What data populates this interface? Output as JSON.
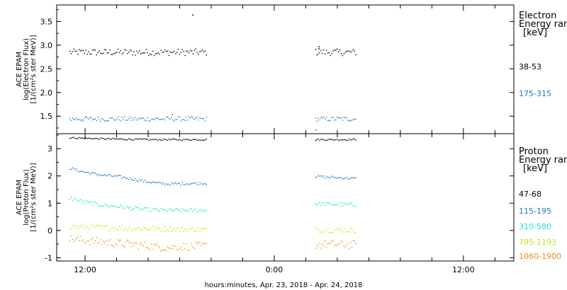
{
  "chart_data": [
    {
      "type": "scatter",
      "panel": "top",
      "ylabel": [
        "ACE EPAM",
        "log(Electron Flux)",
        "[1/(cm²s ster MeV)]"
      ],
      "ylim": [
        1.13,
        3.85
      ],
      "yticks": [
        1.5,
        2.0,
        2.5,
        3.0,
        3.5
      ],
      "ytick_labels": [
        "1.5",
        "2.0",
        "2.5",
        "3.0",
        "3.5"
      ],
      "legend": {
        "title": [
          "Electron",
          "Energy ranges",
          "[keV]"
        ],
        "entries": [
          {
            "label": "38-53",
            "color": "#000000"
          },
          {
            "label": "175-315",
            "color": "#1e78c8"
          }
        ]
      },
      "series": [
        {
          "name": "38-53",
          "color": "#000000",
          "base": 2.86,
          "noise": 0.07,
          "trend": [],
          "segments": [
            [
              -1.0,
              7.7
            ],
            [
              14.6,
              17.2
            ]
          ],
          "step": 0.085,
          "outliers": [
            [
              6.8,
              3.65
            ],
            [
              14.8,
              2.98
            ],
            [
              14.8,
              2.94
            ]
          ]
        },
        {
          "name": "175-315",
          "color": "#1e78c8",
          "base": 1.45,
          "noise": 0.05,
          "trend": [],
          "segments": [
            [
              -1.0,
              7.7
            ],
            [
              14.6,
              17.2
            ]
          ],
          "step": 0.085,
          "outliers": [
            [
              0.0,
              1.5
            ],
            [
              5.5,
              1.55
            ],
            [
              14.6,
              1.22
            ]
          ]
        }
      ]
    },
    {
      "type": "scatter",
      "panel": "bottom",
      "ylabel": [
        "ACE EPAM",
        "log(Proton Flux)",
        "[1/(cm²s ster MeV)]"
      ],
      "ylim": [
        -1.12,
        3.55
      ],
      "yticks": [
        -1,
        0,
        1,
        2,
        3
      ],
      "ytick_labels": [
        "-1",
        "0",
        "1",
        "2",
        "3"
      ],
      "legend": {
        "title": [
          "Proton",
          "Energy ranges",
          "[keV]"
        ],
        "entries": [
          {
            "label": "47-68",
            "color": "#000000"
          },
          {
            "label": "115-195",
            "color": "#1e78c8"
          },
          {
            "label": "310-580",
            "color": "#1ee6c8"
          },
          {
            "label": "795-1193",
            "color": "#c8e61e"
          },
          {
            "label": "1060-1900",
            "color": "#f08c14"
          }
        ]
      },
      "series": [
        {
          "name": "47-68",
          "color": "#000000",
          "base": 3.35,
          "noise": 0.03,
          "trend": [
            [
              -1,
              3.42
            ],
            [
              1,
              3.38
            ],
            [
              4,
              3.35
            ],
            [
              17,
              3.35
            ]
          ],
          "segments": [
            [
              -1.0,
              7.7
            ],
            [
              14.6,
              17.2
            ]
          ],
          "step": 0.085,
          "outliers": []
        },
        {
          "name": "115-195",
          "color": "#1e78c8",
          "base": 1.85,
          "noise": 0.05,
          "trend": [
            [
              -1,
              2.3
            ],
            [
              0,
              2.15
            ],
            [
              1,
              2.05
            ],
            [
              2,
              2.0
            ],
            [
              3,
              1.9
            ],
            [
              4,
              1.8
            ],
            [
              5,
              1.72
            ],
            [
              7.7,
              1.75
            ],
            [
              14.6,
              2.0
            ],
            [
              17.2,
              1.92
            ]
          ],
          "segments": [
            [
              -1.0,
              7.7
            ],
            [
              14.6,
              17.2
            ]
          ],
          "step": 0.085,
          "outliers": []
        },
        {
          "name": "310-580",
          "color": "#1ee6c8",
          "base": 0.8,
          "noise": 0.07,
          "trend": [
            [
              -1,
              1.2
            ],
            [
              0,
              1.05
            ],
            [
              1,
              0.95
            ],
            [
              2,
              0.9
            ],
            [
              3,
              0.82
            ],
            [
              4,
              0.78
            ],
            [
              5,
              0.75
            ],
            [
              7.7,
              0.75
            ],
            [
              14.6,
              1.0
            ],
            [
              17.2,
              0.95
            ]
          ],
          "segments": [
            [
              -1.0,
              7.7
            ],
            [
              14.6,
              17.2
            ]
          ],
          "step": 0.085,
          "outliers": []
        },
        {
          "name": "795-1193",
          "color": "#c8e61e",
          "base": 0.05,
          "noise": 0.1,
          "trend": [
            [
              -1,
              0.15
            ],
            [
              3,
              0.1
            ],
            [
              7.7,
              0.05
            ],
            [
              14.6,
              0.05
            ],
            [
              17.2,
              0.02
            ]
          ],
          "segments": [
            [
              -1.0,
              7.7
            ],
            [
              14.6,
              17.2
            ]
          ],
          "step": 0.085,
          "outliers": []
        },
        {
          "name": "1060-1900",
          "color": "#f08c14",
          "base": -0.5,
          "noise": 0.15,
          "trend": [
            [
              -1,
              -0.3
            ],
            [
              2,
              -0.45
            ],
            [
              5,
              -0.6
            ],
            [
              7.7,
              -0.55
            ],
            [
              14.6,
              -0.5
            ],
            [
              17.2,
              -0.5
            ]
          ],
          "segments": [
            [
              -1.0,
              7.7
            ],
            [
              14.6,
              17.2
            ]
          ],
          "step": 0.085,
          "outliers": []
        }
      ]
    }
  ],
  "x_axis": {
    "xlim": [
      -1.8,
      27.2
    ],
    "major_ticks": [
      0,
      12,
      24
    ],
    "major_tick_labels": [
      "12:00",
      "0:00",
      "12:00"
    ],
    "minor_step": 2,
    "title": "hours:minutes, Apr. 23, 2018 - Apr. 24, 2018"
  }
}
